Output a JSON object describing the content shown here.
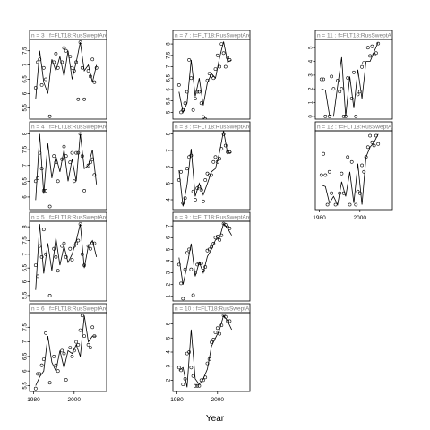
{
  "figure": {
    "xlabel": "Year"
  },
  "chart_data": [
    {
      "type": "scatter",
      "panel": "n = 3",
      "strip_label": "n = 3  :  f=FLT18:RusSweptArea",
      "col": 0,
      "row": 0,
      "xlim": [
        1978,
        2016
      ],
      "ylim": [
        5.1,
        7.9
      ],
      "yticks": [
        5.5,
        6.0,
        6.5,
        7.0,
        7.5
      ],
      "x": [
        1981,
        1982,
        1983,
        1984,
        1985,
        1986,
        1988,
        1990,
        1991,
        1992,
        1994,
        1995,
        1996,
        1998,
        1999,
        2000,
        2001,
        2002,
        2003,
        2004,
        2005,
        2007,
        2008,
        2009,
        2010,
        2011
      ],
      "y": [
        6.2,
        7.1,
        7.2,
        6.3,
        6.9,
        6.5,
        5.2,
        7.1,
        7.4,
        6.9,
        7.1,
        7.6,
        7.5,
        7.3,
        6.9,
        6.8,
        7.1,
        5.8,
        7.8,
        6.9,
        5.8,
        6.8,
        6.6,
        7.2,
        6.4,
        6.9
      ],
      "fit_x": [
        1981,
        1983,
        1985,
        1987,
        1989,
        1991,
        1993,
        1995,
        1997,
        1999,
        2001,
        2003,
        2005,
        2007,
        2009,
        2011
      ],
      "fit_y": [
        5.8,
        7.5,
        6.4,
        6.0,
        7.2,
        6.8,
        7.3,
        6.6,
        7.5,
        6.5,
        7.1,
        7.8,
        6.8,
        7.0,
        6.4,
        7.0
      ]
    },
    {
      "type": "scatter",
      "panel": "n = 4",
      "strip_label": "n = 4  :  f=FLT18:RusSweptArea",
      "col": 0,
      "row": 1,
      "xlim": [
        1978,
        2016
      ],
      "ylim": [
        5.6,
        8.1
      ],
      "yticks": [
        6.0,
        6.5,
        7.0,
        7.5,
        8.0
      ],
      "x": [
        1981,
        1982,
        1983,
        1984,
        1985,
        1986,
        1988,
        1990,
        1991,
        1992,
        1994,
        1995,
        1996,
        1998,
        1999,
        2000,
        2001,
        2002,
        2003,
        2004,
        2005,
        2007,
        2008,
        2009,
        2010
      ],
      "y": [
        6.5,
        6.6,
        7.4,
        6.9,
        6.2,
        6.2,
        5.7,
        7.3,
        7.1,
        6.5,
        7.2,
        7.6,
        7.3,
        7.1,
        7.4,
        6.5,
        7.4,
        7.4,
        8.0,
        7.3,
        6.2,
        7.0,
        7.1,
        7.2,
        6.7
      ],
      "fit_x": [
        1981,
        1983,
        1985,
        1987,
        1989,
        1991,
        1993,
        1995,
        1997,
        1999,
        2001,
        2003,
        2005,
        2007,
        2009,
        2011
      ],
      "fit_y": [
        5.9,
        8.0,
        6.1,
        7.7,
        6.6,
        7.3,
        6.8,
        7.5,
        6.5,
        7.2,
        6.5,
        8.0,
        6.9,
        7.0,
        7.5,
        6.4
      ]
    },
    {
      "type": "scatter",
      "panel": "n = 5",
      "strip_label": "n = 5  :  f=FLT18:RusSweptArea",
      "col": 0,
      "row": 2,
      "xlim": [
        1978,
        2016
      ],
      "ylim": [
        5.3,
        8.2
      ],
      "yticks": [
        5.5,
        6.0,
        6.5,
        7.0,
        7.5,
        8.0
      ],
      "x": [
        1981,
        1982,
        1983,
        1984,
        1985,
        1986,
        1988,
        1990,
        1991,
        1992,
        1994,
        1995,
        1996,
        1998,
        1999,
        2000,
        2001,
        2002,
        2003,
        2004,
        2005,
        2007,
        2008,
        2009,
        2010
      ],
      "y": [
        6.6,
        6.2,
        7.3,
        6.9,
        7.9,
        7.0,
        5.5,
        7.2,
        6.9,
        6.4,
        7.3,
        7.4,
        6.9,
        7.2,
        6.8,
        7.3,
        7.4,
        7.5,
        8.1,
        7.0,
        6.6,
        7.3,
        7.2,
        7.4,
        7.4
      ],
      "fit_x": [
        1981,
        1983,
        1985,
        1987,
        1989,
        1991,
        1993,
        1995,
        1997,
        1999,
        2001,
        2003,
        2005,
        2007,
        2009,
        2011
      ],
      "fit_y": [
        5.7,
        8.1,
        6.3,
        7.4,
        6.4,
        7.6,
        6.6,
        7.3,
        6.7,
        7.0,
        7.5,
        8.1,
        6.5,
        7.3,
        7.5,
        6.9
      ]
    },
    {
      "type": "scatter",
      "panel": "n = 6",
      "strip_label": "n = 6  :  f=FLT18:RusSweptArea",
      "col": 0,
      "row": 3,
      "xlim": [
        1978,
        2016
      ],
      "ylim": [
        5.3,
        8.0
      ],
      "yticks": [
        5.5,
        6.0,
        6.5,
        7.0,
        7.5
      ],
      "x": [
        1981,
        1982,
        1983,
        1984,
        1985,
        1986,
        1988,
        1990,
        1991,
        1992,
        1994,
        1995,
        1996,
        1998,
        1999,
        2000,
        2001,
        2002,
        2003,
        2004,
        2005,
        2007,
        2008,
        2009,
        2010
      ],
      "y": [
        5.4,
        5.9,
        5.9,
        6.2,
        6.4,
        7.3,
        5.6,
        6.5,
        6.2,
        6.0,
        6.7,
        6.6,
        5.7,
        6.8,
        6.5,
        6.7,
        7.0,
        6.9,
        7.4,
        7.9,
        7.2,
        6.9,
        6.8,
        7.5,
        7.2
      ],
      "fit_x": [
        1981,
        1983,
        1985,
        1987,
        1989,
        1991,
        1993,
        1995,
        1997,
        1999,
        2001,
        2003,
        2005,
        2007,
        2009,
        2011
      ],
      "fit_y": [
        5.5,
        5.8,
        6.0,
        7.2,
        6.3,
        6.0,
        6.7,
        6.1,
        6.7,
        6.6,
        6.9,
        6.5,
        7.9,
        7.0,
        7.2,
        7.2
      ]
    },
    {
      "type": "scatter",
      "panel": "n = 7",
      "strip_label": "n = 7  :  f=FLT18:RusSweptArea",
      "col": 1,
      "row": 0,
      "xlim": [
        1978,
        2016
      ],
      "ylim": [
        4.7,
        8.2
      ],
      "yticks": [
        5.0,
        5.5,
        6.0,
        6.5,
        7.0,
        7.5,
        8.0
      ],
      "x": [
        1981,
        1982,
        1983,
        1984,
        1985,
        1986,
        1987,
        1988,
        1989,
        1990,
        1991,
        1992,
        1993,
        1994,
        1995,
        1996,
        1997,
        1998,
        1999,
        2000,
        2001,
        2002,
        2003,
        2004,
        2005,
        2006
      ],
      "y": [
        6.2,
        5.0,
        5.1,
        5.4,
        5.9,
        7.3,
        6.5,
        5.1,
        5.6,
        5.9,
        5.9,
        5.4,
        4.8,
        4.7,
        6.4,
        6.7,
        6.6,
        6.5,
        6.9,
        7.5,
        7.0,
        8.0,
        7.6,
        7.0,
        7.4,
        7.3
      ],
      "fit_x": [
        1981,
        1983,
        1985,
        1987,
        1989,
        1991,
        1993,
        1995,
        1997,
        1999,
        2001,
        2003,
        2005,
        2007
      ],
      "fit_y": [
        5.9,
        5.0,
        5.4,
        7.3,
        5.7,
        6.5,
        5.3,
        6.3,
        6.7,
        6.5,
        7.4,
        8.1,
        7.2,
        7.3
      ]
    },
    {
      "type": "scatter",
      "panel": "n = 8",
      "strip_label": "n = 8  :  f=FLT18:RusSweptArea",
      "col": 1,
      "row": 1,
      "xlim": [
        1978,
        2016
      ],
      "ylim": [
        3.4,
        8.2
      ],
      "yticks": [
        4,
        5,
        6,
        7,
        8
      ],
      "x": [
        1981,
        1982,
        1983,
        1984,
        1985,
        1986,
        1987,
        1988,
        1989,
        1990,
        1991,
        1992,
        1993,
        1994,
        1995,
        1996,
        1997,
        1998,
        1999,
        2000,
        2001,
        2002,
        2003,
        2004,
        2005,
        2006
      ],
      "y": [
        5.2,
        5.7,
        3.8,
        4.1,
        5.9,
        6.6,
        6.7,
        4.5,
        4.0,
        4.7,
        4.8,
        4.6,
        3.9,
        5.2,
        5.6,
        5.5,
        5.5,
        6.3,
        6.6,
        6.3,
        6.5,
        7.1,
        8.0,
        7.3,
        6.9,
        6.9
      ],
      "fit_x": [
        1981,
        1983,
        1985,
        1987,
        1989,
        1991,
        1993,
        1995,
        1997,
        1999,
        2001,
        2003,
        2005,
        2007
      ],
      "fit_y": [
        5.8,
        3.6,
        4.9,
        7.1,
        4.2,
        5.0,
        4.3,
        5.0,
        5.7,
        5.9,
        6.9,
        8.2,
        6.8,
        6.9
      ]
    },
    {
      "type": "scatter",
      "panel": "n = 9",
      "strip_label": "n = 9  :  f=FLT18:RusSweptArea",
      "col": 1,
      "row": 2,
      "xlim": [
        1978,
        2016
      ],
      "ylim": [
        0.6,
        7.4
      ],
      "yticks": [
        1,
        2,
        3,
        4,
        5,
        6,
        7
      ],
      "x": [
        1981,
        1982,
        1983,
        1984,
        1985,
        1986,
        1987,
        1988,
        1989,
        1990,
        1991,
        1992,
        1993,
        1994,
        1995,
        1996,
        1997,
        1998,
        1999,
        2000,
        2001,
        2002,
        2003,
        2004,
        2005,
        2006
      ],
      "y": [
        3.7,
        2.1,
        0.8,
        3.3,
        4.7,
        5.0,
        3.3,
        1.1,
        3.0,
        3.7,
        3.8,
        3.8,
        3.2,
        3.5,
        4.9,
        5.0,
        5.2,
        5.5,
        6.0,
        6.1,
        5.8,
        6.2,
        7.2,
        7.1,
        6.9,
        6.8
      ],
      "fit_x": [
        1981,
        1983,
        1985,
        1987,
        1989,
        1991,
        1993,
        1995,
        1997,
        1999,
        2001,
        2003,
        2005,
        2007
      ],
      "fit_y": [
        4.3,
        2.0,
        3.6,
        5.5,
        2.7,
        3.9,
        3.0,
        4.4,
        5.0,
        5.8,
        6.0,
        7.2,
        6.8,
        6.2
      ]
    },
    {
      "type": "scatter",
      "panel": "n = 10",
      "strip_label": "n = 10  :  f=FLT18:RusSweptArea",
      "col": 1,
      "row": 3,
      "xlim": [
        1978,
        2016
      ],
      "ylim": [
        1.2,
        6.8
      ],
      "yticks": [
        2,
        3,
        4,
        5,
        6
      ],
      "x": [
        1981,
        1982,
        1983,
        1984,
        1985,
        1986,
        1987,
        1988,
        1989,
        1990,
        1991,
        1992,
        1993,
        1994,
        1995,
        1996,
        1997,
        1998,
        1999,
        2000,
        2001,
        2002,
        2003,
        2004,
        2005,
        2006
      ],
      "y": [
        2.9,
        2.7,
        1.7,
        2.1,
        3.9,
        4.0,
        2.9,
        2.3,
        1.6,
        1.6,
        1.6,
        2.0,
        2.0,
        2.2,
        3.2,
        3.5,
        4.7,
        4.9,
        5.4,
        5.7,
        5.3,
        5.9,
        6.6,
        6.5,
        6.2,
        6.2
      ],
      "fit_x": [
        1981,
        1983,
        1985,
        1987,
        1989,
        1991,
        1993,
        1995,
        1997,
        1999,
        2001,
        2003,
        2005,
        2007
      ],
      "fit_y": [
        2.7,
        2.9,
        1.5,
        5.6,
        2.1,
        1.7,
        2.1,
        2.8,
        4.4,
        5.0,
        5.6,
        6.6,
        6.2,
        5.6
      ]
    },
    {
      "type": "scatter",
      "panel": "n = 11",
      "strip_label": "n = 11  :  f=FLT18:RusSweptArea",
      "col": 2,
      "row": 0,
      "xlim": [
        1978,
        2016
      ],
      "ylim": [
        -0.2,
        5.6
      ],
      "yticks": [
        0,
        1,
        2,
        3,
        4,
        5
      ],
      "x": [
        1981,
        1982,
        1983,
        1985,
        1986,
        1987,
        1989,
        1990,
        1991,
        1992,
        1993,
        1994,
        1996,
        1997,
        1998,
        1999,
        2000,
        2001,
        2002,
        2004,
        2005,
        2006,
        2007,
        2008,
        2009
      ],
      "y": [
        2.7,
        2.7,
        0.0,
        0.0,
        2.9,
        2.0,
        2.6,
        1.8,
        2.0,
        0.0,
        0.0,
        2.8,
        1.3,
        3.2,
        0.0,
        1.6,
        1.8,
        3.6,
        3.9,
        5.0,
        4.4,
        5.1,
        4.5,
        4.6,
        5.3
      ],
      "fit_x": [
        1981,
        1983,
        1985,
        1987,
        1989,
        1991,
        1993,
        1995,
        1997,
        1999,
        2001,
        2003,
        2005,
        2007,
        2009
      ],
      "fit_y": [
        2.0,
        1.9,
        0.1,
        0.0,
        2.2,
        4.3,
        0.0,
        2.9,
        0.6,
        3.4,
        1.3,
        4.0,
        4.0,
        4.7,
        5.4
      ]
    },
    {
      "type": "scatter",
      "panel": "n = 12",
      "strip_label": "n = 12  :  f=FLT18:RusSweptArea",
      "col": 2,
      "row": 1,
      "xlim": [
        1978,
        2016
      ],
      "ylim": [
        -0.3,
        4.5
      ],
      "yticks": [],
      "x": [
        1981,
        1982,
        1983,
        1984,
        1985,
        1986,
        1988,
        1990,
        1991,
        1992,
        1994,
        1995,
        1996,
        1998,
        1999,
        2000,
        2001,
        2002,
        2003,
        2004,
        2005,
        2006,
        2007,
        2008,
        2009
      ],
      "y": [
        1.8,
        3.1,
        1.8,
        0.0,
        2.0,
        0.7,
        0.0,
        0.7,
        1.9,
        0.7,
        2.9,
        0.0,
        2.6,
        0.0,
        0.8,
        0.7,
        2.4,
        2.0,
        2.9,
        3.5,
        4.2,
        3.8,
        3.6,
        4.2,
        3.7
      ],
      "fit_x": [
        1981,
        1983,
        1985,
        1987,
        1989,
        1991,
        1993,
        1995,
        1997,
        1999,
        2001,
        2003,
        2005,
        2007,
        2009
      ],
      "fit_y": [
        1.2,
        1.1,
        0.1,
        0.5,
        0.0,
        1.4,
        0.5,
        2.0,
        0.1,
        2.5,
        0.0,
        2.9,
        3.5,
        3.8,
        4.3
      ]
    }
  ]
}
